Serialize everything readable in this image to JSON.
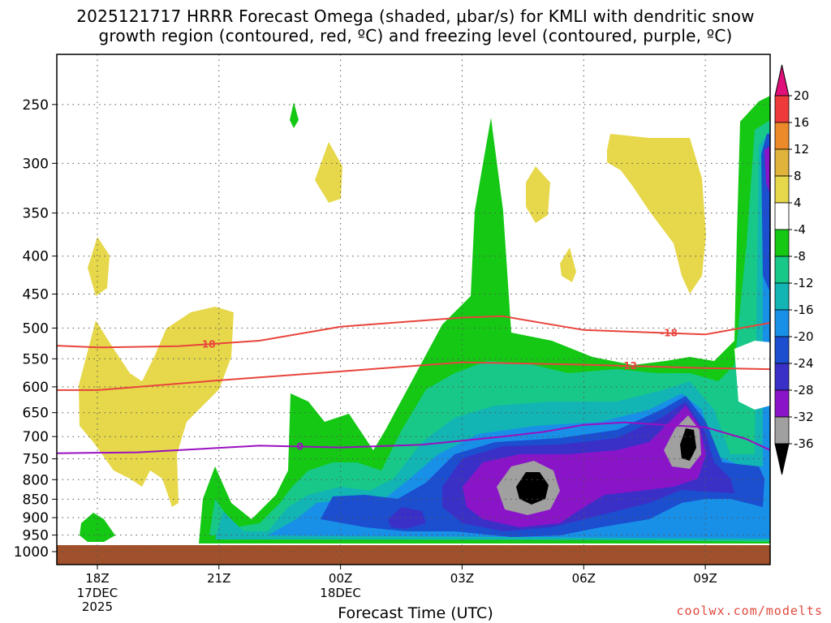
{
  "title_line1": "2025121717 HRRR Forecast Omega (shaded, μbar/s) for KMLI with dendritic snow",
  "title_line2": "growth region (contoured, red, ºC) and freezing level (contoured, purple, ºC)",
  "credit": "coolwx.com/modelts",
  "chart_data": {
    "type": "time-height contour",
    "xlabel": "Forecast Time (UTC)",
    "ylabel": "",
    "x_ticks": [
      {
        "label": "18Z",
        "sub": [
          "17DEC",
          "2025"
        ],
        "hour": 1
      },
      {
        "label": "21Z",
        "sub": [],
        "hour": 4
      },
      {
        "label": "00Z",
        "sub": [
          "18DEC"
        ],
        "hour": 7
      },
      {
        "label": "03Z",
        "sub": [],
        "hour": 10
      },
      {
        "label": "06Z",
        "sub": [],
        "hour": 13
      },
      {
        "label": "09Z",
        "sub": [],
        "hour": 16
      }
    ],
    "xlim_hours": [
      0,
      17.6
    ],
    "y_ticks": [
      "250",
      "300",
      "350",
      "400",
      "450",
      "500",
      "550",
      "600",
      "650",
      "700",
      "750",
      "800",
      "850",
      "900",
      "950",
      "1000"
    ],
    "y_values": [
      250,
      300,
      350,
      400,
      450,
      500,
      550,
      600,
      650,
      700,
      750,
      800,
      850,
      900,
      950,
      1000
    ],
    "ylim_hPa": [
      1000,
      200
    ],
    "y_scale": "log-pressure",
    "grid": true,
    "colorbar": {
      "labels": [
        "20",
        "16",
        "12",
        "8",
        "4",
        "-4",
        "-8",
        "-12",
        "-16",
        "-20",
        "-24",
        "-28",
        "-32",
        "-36"
      ],
      "colors": [
        "#e8306a",
        "#ee3a3a",
        "#ec8a2a",
        "#e0b43a",
        "#e6d84a",
        "#ffffff",
        "#14c814",
        "#18c888",
        "#12b4b4",
        "#1890e8",
        "#1c4ed0",
        "#3a30c8",
        "#8a14c8",
        "#a0a0a0",
        "#000000"
      ],
      "top_arrow_color": "#e0107a",
      "bottom_arrow_color": "#000000"
    },
    "contour_labels": {
      "dgz_top": "-18",
      "dgz_top_right": "-18",
      "dgz_bottom": "-12",
      "freezing": "0"
    },
    "dgz_top_line": [
      [
        0,
        528
      ],
      [
        1,
        531
      ],
      [
        3,
        529
      ],
      [
        5,
        520
      ],
      [
        7,
        498
      ],
      [
        10,
        484
      ],
      [
        11,
        482
      ],
      [
        13,
        503
      ],
      [
        16,
        510
      ],
      [
        17.6,
        492
      ]
    ],
    "dgz_bottom_line": [
      [
        0,
        606
      ],
      [
        1,
        606
      ],
      [
        4,
        588
      ],
      [
        7,
        572
      ],
      [
        10,
        556
      ],
      [
        13,
        560
      ],
      [
        16,
        566
      ],
      [
        17.6,
        568
      ]
    ],
    "freezing_line": [
      [
        0,
        737
      ],
      [
        2,
        735
      ],
      [
        5,
        720
      ],
      [
        7,
        724
      ],
      [
        9,
        718
      ],
      [
        11,
        700
      ],
      [
        12,
        690
      ],
      [
        13,
        675
      ],
      [
        14,
        670
      ],
      [
        16,
        680
      ],
      [
        17,
        705
      ],
      [
        17.6,
        730
      ]
    ]
  }
}
